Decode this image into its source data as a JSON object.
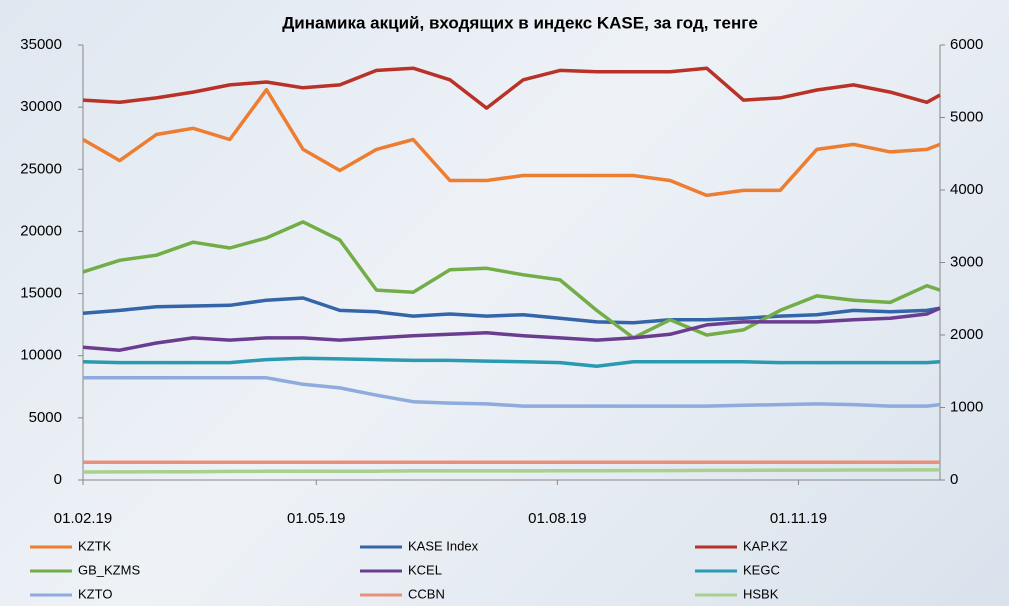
{
  "chart_data": {
    "type": "line",
    "title": "Динамика акций, входящих в индекс KASE, за год, тенге",
    "x": [
      "01.02.19",
      "15.02.19",
      "01.03.19",
      "15.03.19",
      "29.03.19",
      "12.04.19",
      "26.04.19",
      "10.05.19",
      "24.05.19",
      "07.06.19",
      "21.06.19",
      "05.07.19",
      "19.07.19",
      "02.08.19",
      "16.08.19",
      "30.08.19",
      "13.09.19",
      "27.09.19",
      "11.10.19",
      "25.10.19",
      "08.11.19",
      "22.11.19",
      "06.12.19",
      "20.12.19",
      "25.12.19"
    ],
    "xlim": [
      "01.02.19",
      "25.12.19"
    ],
    "xticks": [
      "01.02.19",
      "01.05.19",
      "01.08.19",
      "01.11.19"
    ],
    "ylim": [
      0,
      35000
    ],
    "yticks": [
      0,
      5000,
      10000,
      15000,
      20000,
      25000,
      30000,
      35000
    ],
    "y2lim": [
      0,
      6000
    ],
    "y2ticks": [
      0,
      1000,
      2000,
      3000,
      4000,
      5000,
      6000
    ],
    "series": [
      {
        "name": "KZTK",
        "color": "#ed7d31",
        "values": [
          27400,
          25700,
          27800,
          28300,
          27400,
          31400,
          26600,
          24900,
          26600,
          27400,
          24100,
          24100,
          24500,
          24500,
          24500,
          24500,
          24100,
          22900,
          23300,
          23300,
          26600,
          27000,
          26400,
          26600,
          27000
        ]
      },
      {
        "name": "KASE Index",
        "color": "#3465a8",
        "axis": "y2",
        "values": [
          2300,
          2340,
          2390,
          2400,
          2410,
          2480,
          2510,
          2340,
          2320,
          2260,
          2290,
          2260,
          2280,
          2230,
          2180,
          2170,
          2210,
          2210,
          2230,
          2260,
          2280,
          2340,
          2320,
          2340,
          2370
        ]
      },
      {
        "name": "KAP.KZ",
        "color": "#b83227",
        "axis": "y2",
        "values": [
          5240,
          5210,
          5270,
          5350,
          5450,
          5490,
          5410,
          5450,
          5650,
          5680,
          5520,
          5130,
          5520,
          5650,
          5630,
          5630,
          5630,
          5680,
          5240,
          5270,
          5380,
          5450,
          5350,
          5210,
          5310
        ]
      },
      {
        "name": "GB_KZMS",
        "color": "#72ad47",
        "axis": "y2",
        "values": [
          2870,
          3030,
          3100,
          3280,
          3200,
          3340,
          3560,
          3310,
          2620,
          2590,
          2900,
          2920,
          2830,
          2760,
          2340,
          1960,
          2210,
          2000,
          2070,
          2340,
          2540,
          2480,
          2450,
          2680,
          2620
        ]
      },
      {
        "name": "KCEL",
        "color": "#6b3d91",
        "axis": "y2",
        "values": [
          1830,
          1790,
          1890,
          1960,
          1930,
          1960,
          1960,
          1930,
          1960,
          1990,
          2010,
          2030,
          1990,
          1960,
          1930,
          1960,
          2010,
          2140,
          2180,
          2180,
          2180,
          2210,
          2230,
          2290,
          2370
        ]
      },
      {
        "name": "KEGC",
        "color": "#2a9ab0",
        "axis": "y2",
        "values": [
          1630,
          1620,
          1620,
          1620,
          1620,
          1660,
          1680,
          1670,
          1660,
          1650,
          1650,
          1640,
          1630,
          1620,
          1570,
          1630,
          1630,
          1630,
          1630,
          1620,
          1620,
          1620,
          1620,
          1620,
          1630
        ]
      },
      {
        "name": "KZTO",
        "color": "#8faadc",
        "axis": "y2",
        "values": [
          1410,
          1410,
          1410,
          1410,
          1410,
          1410,
          1320,
          1270,
          1170,
          1080,
          1060,
          1050,
          1020,
          1020,
          1020,
          1020,
          1020,
          1020,
          1030,
          1040,
          1050,
          1040,
          1020,
          1020,
          1040
        ]
      },
      {
        "name": "CCBN",
        "color": "#e8907a",
        "axis": "y2",
        "values": [
          245,
          245,
          245,
          245,
          245,
          245,
          245,
          245,
          245,
          245,
          245,
          245,
          245,
          245,
          245,
          245,
          245,
          245,
          245,
          245,
          245,
          245,
          245,
          245,
          245
        ]
      },
      {
        "name": "HSBK",
        "color": "#a9d18e",
        "axis": "y2",
        "values": [
          110,
          112,
          115,
          115,
          118,
          120,
          120,
          120,
          122,
          125,
          125,
          125,
          125,
          128,
          128,
          130,
          130,
          132,
          132,
          135,
          135,
          138,
          138,
          140,
          140
        ]
      }
    ]
  }
}
